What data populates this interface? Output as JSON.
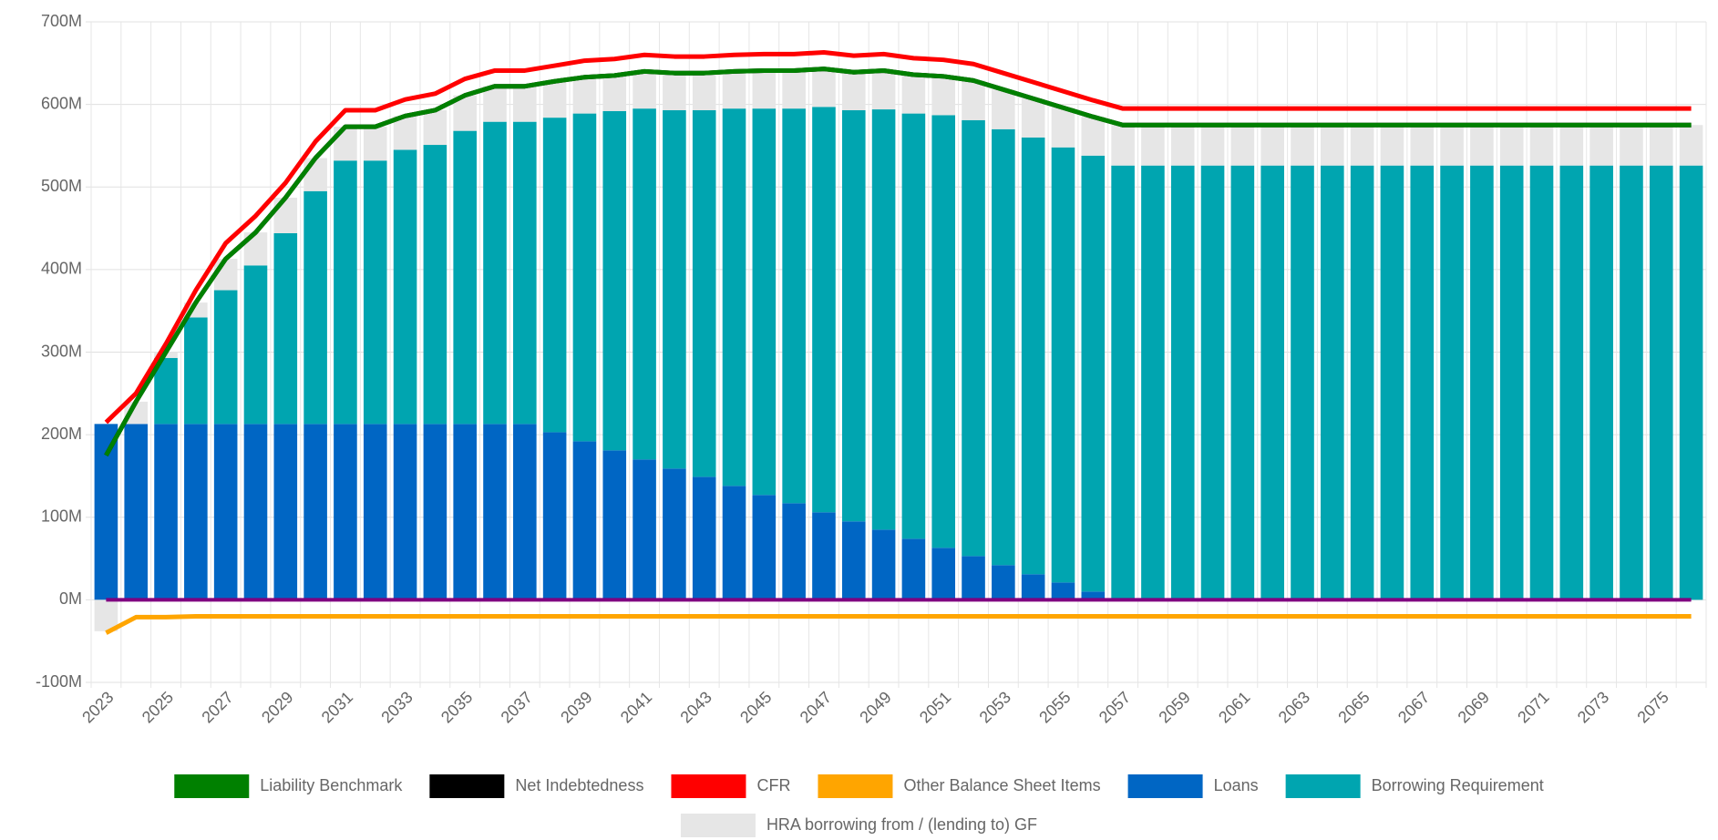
{
  "chart_data": {
    "type": "combo",
    "categories": [
      "2023",
      null,
      "2025",
      null,
      "2027",
      null,
      "2029",
      null,
      "2031",
      null,
      "2033",
      null,
      "2035",
      null,
      "2037",
      null,
      "2039",
      null,
      "2041",
      null,
      "2043",
      null,
      "2045",
      null,
      "2047",
      null,
      "2049",
      null,
      "2051",
      null,
      "2053",
      null,
      "2055",
      null,
      "2057",
      null,
      "2059",
      null,
      "2061",
      null,
      "2063",
      null,
      "2065",
      null,
      "2067",
      null,
      "2069",
      null,
      "2071",
      null,
      "2073",
      null,
      "2075",
      null
    ],
    "ylim": [
      -100,
      700
    ],
    "yticks": [
      {
        "value": -100,
        "label": "-100M"
      },
      {
        "value": 0,
        "label": "0M"
      },
      {
        "value": 100,
        "label": "100M"
      },
      {
        "value": 200,
        "label": "200M"
      },
      {
        "value": 300,
        "label": "300M"
      },
      {
        "value": 400,
        "label": "400M"
      },
      {
        "value": 500,
        "label": "500M"
      },
      {
        "value": 600,
        "label": "600M"
      },
      {
        "value": 700,
        "label": "700M"
      }
    ],
    "grid": true,
    "series": [
      {
        "name": "Liability Benchmark",
        "type": "line",
        "color": "#008000",
        "values": [
          175,
          240,
          300,
          360,
          413,
          445,
          487,
          535,
          573,
          573,
          586,
          593,
          611,
          622,
          622,
          628,
          633,
          635,
          640,
          638,
          638,
          640,
          641,
          641,
          643,
          639,
          641,
          636,
          634,
          629,
          618,
          607,
          596,
          585,
          575,
          575,
          575,
          575,
          575,
          575,
          575,
          575,
          575,
          575,
          575,
          575,
          575,
          575,
          575,
          575,
          575,
          575,
          575,
          575
        ]
      },
      {
        "name": "Net Indebtedness",
        "type": "line",
        "color": "#000000",
        "values": [
          175,
          240,
          300,
          360,
          413,
          445,
          487,
          535,
          573,
          573,
          586,
          593,
          611,
          622,
          622,
          628,
          633,
          635,
          640,
          638,
          638,
          640,
          641,
          641,
          643,
          639,
          641,
          636,
          634,
          629,
          618,
          607,
          596,
          585,
          575,
          575,
          575,
          575,
          575,
          575,
          575,
          575,
          575,
          575,
          575,
          575,
          575,
          575,
          575,
          575,
          575,
          575,
          575,
          575
        ]
      },
      {
        "name": "CFR",
        "type": "line",
        "color": "#ff0000",
        "values": [
          215,
          250,
          310,
          375,
          432,
          465,
          505,
          555,
          593,
          593,
          606,
          613,
          631,
          641,
          641,
          647,
          653,
          655,
          660,
          658,
          658,
          660,
          661,
          661,
          663,
          659,
          661,
          656,
          654,
          649,
          638,
          627,
          616,
          605,
          595,
          595,
          595,
          595,
          595,
          595,
          595,
          595,
          595,
          595,
          595,
          595,
          595,
          595,
          595,
          595,
          595,
          595,
          595,
          595
        ]
      },
      {
        "name": "Other Balance Sheet Items",
        "type": "line",
        "color": "#ffa500",
        "values": [
          -40,
          -21,
          -21,
          -20,
          -20,
          -20,
          -20,
          -20,
          -20,
          -20,
          -20,
          -20,
          -20,
          -20,
          -20,
          -20,
          -20,
          -20,
          -20,
          -20,
          -20,
          -20,
          -20,
          -20,
          -20,
          -20,
          -20,
          -20,
          -20,
          -20,
          -20,
          -20,
          -20,
          -20,
          -20,
          -20,
          -20,
          -20,
          -20,
          -20,
          -20,
          -20,
          -20,
          -20,
          -20,
          -20,
          -20,
          -20,
          -20,
          -20,
          -20,
          -20,
          -20,
          -20
        ]
      },
      {
        "name": "Loans",
        "type": "bar",
        "color": "#0066c4",
        "values": [
          213,
          213,
          213,
          213,
          213,
          213,
          213,
          213,
          213,
          213,
          213,
          213,
          213,
          213,
          213,
          203,
          192,
          181,
          170,
          159,
          149,
          138,
          127,
          117,
          106,
          95,
          85,
          74,
          63,
          53,
          42,
          31,
          21,
          10,
          0,
          0,
          0,
          0,
          0,
          0,
          0,
          0,
          0,
          0,
          0,
          0,
          0,
          0,
          0,
          0,
          0,
          0,
          0,
          0
        ]
      },
      {
        "name": "Borrowing Requirement",
        "type": "bar",
        "color": "#00a5b0",
        "values": [
          0,
          0,
          80,
          129,
          162,
          192,
          231,
          282,
          319,
          319,
          332,
          338,
          355,
          366,
          366,
          381,
          397,
          411,
          425,
          434,
          444,
          457,
          468,
          478,
          491,
          498,
          509,
          515,
          524,
          528,
          528,
          529,
          527,
          528,
          526,
          526,
          526,
          526,
          526,
          526,
          526,
          526,
          526,
          526,
          526,
          526,
          526,
          526,
          526,
          526,
          526,
          526,
          526,
          526
        ]
      },
      {
        "name": "HRA borrowing from / (lending to) GF",
        "type": "bar",
        "color": "#e6e6e6",
        "values": [
          -38,
          27,
          7,
          18,
          38,
          40,
          43,
          40,
          41,
          41,
          41,
          42,
          43,
          43,
          43,
          44,
          44,
          43,
          45,
          45,
          45,
          45,
          46,
          46,
          46,
          46,
          47,
          47,
          47,
          48,
          48,
          47,
          48,
          47,
          49,
          49,
          49,
          49,
          49,
          49,
          49,
          49,
          49,
          49,
          49,
          49,
          49,
          49,
          49,
          49,
          49,
          49,
          49,
          49
        ]
      }
    ]
  }
}
